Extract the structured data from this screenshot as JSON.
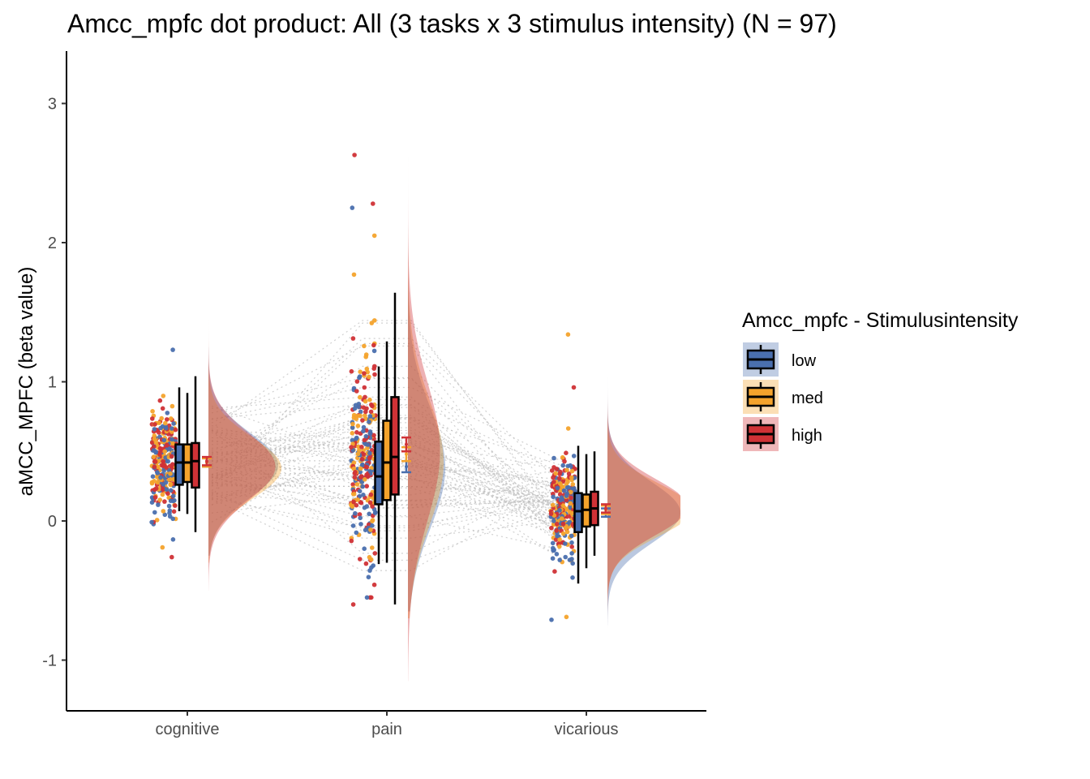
{
  "chart_data": {
    "type": "raincloud",
    "title": "Amcc_mpfc dot product: All (3 tasks x 3 stimulus intensity) (N = 97)",
    "xlabel": "",
    "ylabel": "aMCC_MPFC  (beta value)",
    "ylim": [
      -1.35,
      3.35
    ],
    "yticks": [
      "-1",
      "0",
      "1",
      "2",
      "3"
    ],
    "categories": [
      "cognitive",
      "pain",
      "vicarious"
    ],
    "legend": {
      "title": "Amcc_mpfc - Stimulusintensity",
      "position": "right"
    },
    "grid": false,
    "series": [
      {
        "name": "low",
        "color": "#4a6fae",
        "box": [
          {
            "whisker_low": 0.07,
            "q1": 0.26,
            "median": 0.42,
            "q3": 0.55,
            "whisker_high": 0.96
          },
          {
            "whisker_low": -0.31,
            "q1": 0.12,
            "median": 0.32,
            "q3": 0.57,
            "whisker_high": 1.11
          },
          {
            "whisker_low": -0.45,
            "q1": -0.08,
            "median": 0.07,
            "q3": 0.2,
            "whisker_high": 0.54
          }
        ],
        "mean": [
          0.42,
          0.39,
          0.06
        ],
        "se": [
          0.03,
          0.04,
          0.03
        ],
        "density": [
          {
            "mean": 0.4,
            "sd": 0.23,
            "min": -0.25,
            "max": 1.25
          },
          {
            "mean": 0.38,
            "sd": 0.43,
            "min": -0.65,
            "max": 2.25
          },
          {
            "mean": 0.06,
            "sd": 0.22,
            "min": -0.75,
            "max": 1.35
          }
        ]
      },
      {
        "name": "med",
        "color": "#f4a32c",
        "box": [
          {
            "whisker_low": 0.05,
            "q1": 0.28,
            "median": 0.42,
            "q3": 0.55,
            "whisker_high": 0.92
          },
          {
            "whisker_low": -0.3,
            "q1": 0.15,
            "median": 0.42,
            "q3": 0.72,
            "whisker_high": 1.29
          },
          {
            "whisker_low": -0.34,
            "q1": -0.04,
            "median": 0.08,
            "q3": 0.19,
            "whisker_high": 0.48
          }
        ],
        "mean": [
          0.42,
          0.48,
          0.08
        ],
        "se": [
          0.03,
          0.05,
          0.03
        ],
        "density": [
          {
            "mean": 0.38,
            "sd": 0.22,
            "min": -0.3,
            "max": 1.35
          },
          {
            "mean": 0.42,
            "sd": 0.45,
            "min": -0.7,
            "max": 2.1
          },
          {
            "mean": 0.08,
            "sd": 0.19,
            "min": -0.85,
            "max": 1.45
          }
        ]
      },
      {
        "name": "high",
        "color": "#d03236",
        "box": [
          {
            "whisker_low": -0.08,
            "q1": 0.24,
            "median": 0.43,
            "q3": 0.56,
            "whisker_high": 1.04
          },
          {
            "whisker_low": -0.6,
            "q1": 0.19,
            "median": 0.46,
            "q3": 0.89,
            "whisker_high": 1.64
          },
          {
            "whisker_low": -0.25,
            "q1": -0.03,
            "median": 0.09,
            "q3": 0.21,
            "whisker_high": 0.5
          }
        ],
        "mean": [
          0.43,
          0.55,
          0.09
        ],
        "se": [
          0.03,
          0.05,
          0.03
        ],
        "density": [
          {
            "mean": 0.39,
            "sd": 0.24,
            "min": -0.5,
            "max": 1.5
          },
          {
            "mean": 0.5,
            "sd": 0.5,
            "min": -1.15,
            "max": 3.15
          },
          {
            "mean": 0.1,
            "sd": 0.2,
            "min": -0.9,
            "max": 1.55
          }
        ]
      }
    ],
    "points": {
      "count_per_group": 97,
      "group_spread_sd": [
        0.23,
        0.42,
        0.21
      ],
      "group_center": [
        0.41,
        0.45,
        0.08
      ],
      "outliers": [
        {
          "category": "pain",
          "series": "high",
          "y": 2.63
        },
        {
          "category": "pain",
          "series": "high",
          "y": 2.28
        },
        {
          "category": "pain",
          "series": "low",
          "y": 2.25
        },
        {
          "category": "pain",
          "series": "med",
          "y": 2.05
        },
        {
          "category": "pain",
          "series": "med",
          "y": 1.77
        },
        {
          "category": "pain",
          "series": "high",
          "y": -0.6
        },
        {
          "category": "vicarious",
          "series": "med",
          "y": 1.34
        },
        {
          "category": "vicarious",
          "series": "high",
          "y": 0.96
        },
        {
          "category": "vicarious",
          "series": "low",
          "y": -0.71
        },
        {
          "category": "vicarious",
          "series": "med",
          "y": -0.69
        },
        {
          "category": "cognitive",
          "series": "high",
          "y": -0.26
        },
        {
          "category": "cognitive",
          "series": "med",
          "y": -0.19
        },
        {
          "category": "cognitive",
          "series": "low",
          "y": 1.23
        }
      ]
    }
  }
}
